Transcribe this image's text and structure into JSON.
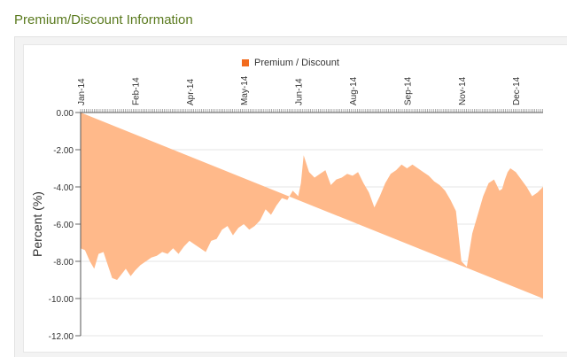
{
  "section": {
    "title": "Premium/Discount Information"
  },
  "chart_data": {
    "type": "area",
    "title": "",
    "xlabel": "",
    "ylabel": "Percent (%)",
    "legend": {
      "placement": "top-center",
      "entries": [
        "Premium / Discount"
      ]
    },
    "series": [
      {
        "name": "Premium / Discount",
        "color": "#ffb98a",
        "swatch_color": "#f26b1d",
        "x_month_index": [
          0.0,
          0.08,
          0.17,
          0.25,
          0.33,
          0.42,
          0.5,
          0.58,
          0.67,
          0.75,
          0.83,
          0.92,
          1.0,
          1.1,
          1.2,
          1.3,
          1.4,
          1.5,
          1.6,
          1.7,
          1.8,
          1.9,
          2.0,
          2.1,
          2.2,
          2.3,
          2.4,
          2.5,
          2.6,
          2.7,
          2.8,
          2.9,
          3.0,
          3.1,
          3.2,
          3.3,
          3.4,
          3.5,
          3.6,
          3.7,
          3.8,
          3.9,
          4.0,
          4.05,
          4.1,
          4.2,
          4.3,
          4.4,
          4.5,
          4.6,
          4.7,
          4.8,
          4.9,
          5.0,
          5.1,
          5.2,
          5.3,
          5.4,
          5.5,
          5.6,
          5.7,
          5.8,
          5.9,
          6.0,
          6.1,
          6.2,
          6.3,
          6.4,
          6.5,
          6.6,
          6.7,
          6.8,
          6.9,
          7.0,
          7.1,
          7.2,
          7.3,
          7.4,
          7.5,
          7.6,
          7.7,
          7.75,
          7.8,
          7.85,
          7.9,
          8.0,
          8.1,
          8.2,
          8.3,
          8.4,
          8.5,
          8.6,
          8.7,
          8.8,
          8.9,
          9.0,
          9.1,
          9.2,
          9.3,
          9.4,
          9.5,
          9.6,
          9.7,
          9.8,
          9.9,
          10.0,
          10.1,
          10.2,
          10.3,
          10.4,
          10.5,
          10.6,
          10.7,
          10.8,
          10.9,
          11.0,
          11.1,
          11.2,
          11.3,
          11.4,
          11.5,
          11.6,
          11.7,
          11.8,
          11.9,
          12.0,
          12.1,
          12.2,
          12.3
        ],
        "values": [
          -7.3,
          -7.4,
          -8.0,
          -8.4,
          -7.6,
          -7.5,
          -8.2,
          -8.9,
          -9.0,
          -8.7,
          -8.4,
          -8.8,
          -8.5,
          -8.2,
          -8.0,
          -7.8,
          -7.7,
          -7.5,
          -7.6,
          -7.3,
          -7.6,
          -7.2,
          -6.9,
          -7.1,
          -7.3,
          -7.5,
          -6.9,
          -6.8,
          -6.3,
          -6.1,
          -6.6,
          -6.2,
          -6.0,
          -6.3,
          -6.1,
          -5.8,
          -5.2,
          -5.5,
          -5.0,
          -4.6,
          -4.7,
          -4.2,
          -4.5,
          -3.8,
          -2.3,
          -3.2,
          -3.5,
          -3.3,
          -3.1,
          -3.9,
          -3.6,
          -3.5,
          -3.3,
          -3.4,
          -3.2,
          -3.8,
          -4.3,
          -5.1,
          -4.5,
          -3.8,
          -3.3,
          -3.1,
          -2.8,
          -3.0,
          -2.8,
          -3.0,
          -3.2,
          -3.4,
          -3.7,
          -3.9,
          -4.2,
          -4.7,
          -5.3,
          -8.0,
          -8.3,
          -6.5,
          -5.5,
          -4.5,
          -3.8,
          -3.6,
          -4.2,
          -4.1,
          -3.6,
          -3.2,
          -3.0,
          -3.2,
          -3.6,
          -4.0,
          -4.5,
          -4.3,
          -4.0,
          -3.8,
          -3.6,
          -3.5,
          -3.4,
          -3.3,
          -3.0,
          -2.6,
          -3.1,
          -3.0,
          -3.4,
          -3.5,
          -3.6,
          -4.0,
          -3.3,
          -3.0,
          -3.4,
          -3.3,
          -3.1,
          -3.5,
          -2.9,
          -2.7,
          -3.0,
          -2.8,
          -2.5,
          -3.3,
          -3.6,
          -4.6,
          -5.0,
          -5.4,
          -5.3,
          -5.8,
          -5.2,
          -5.6,
          -7.6,
          -8.4,
          -8.9,
          -10.0
        ]
      }
    ],
    "x_ticks": [
      {
        "label": "Jan-14",
        "month_index": 0
      },
      {
        "label": "Feb-14",
        "month_index": 1
      },
      {
        "label": "Apr-14",
        "month_index": 2
      },
      {
        "label": "May-14",
        "month_index": 3
      },
      {
        "label": "Jun-14",
        "month_index": 4
      },
      {
        "label": "Aug-14",
        "month_index": 5
      },
      {
        "label": "Sep-14",
        "month_index": 6
      },
      {
        "label": "Nov-14",
        "month_index": 7
      },
      {
        "label": "Dec-14",
        "month_index": 8
      }
    ],
    "y_ticks": [
      "0.00",
      "-2.00",
      "-4.00",
      "-6.00",
      "-8.00",
      "-10.00",
      "-12.00"
    ],
    "ylim": [
      -12,
      0
    ],
    "grid": true
  }
}
